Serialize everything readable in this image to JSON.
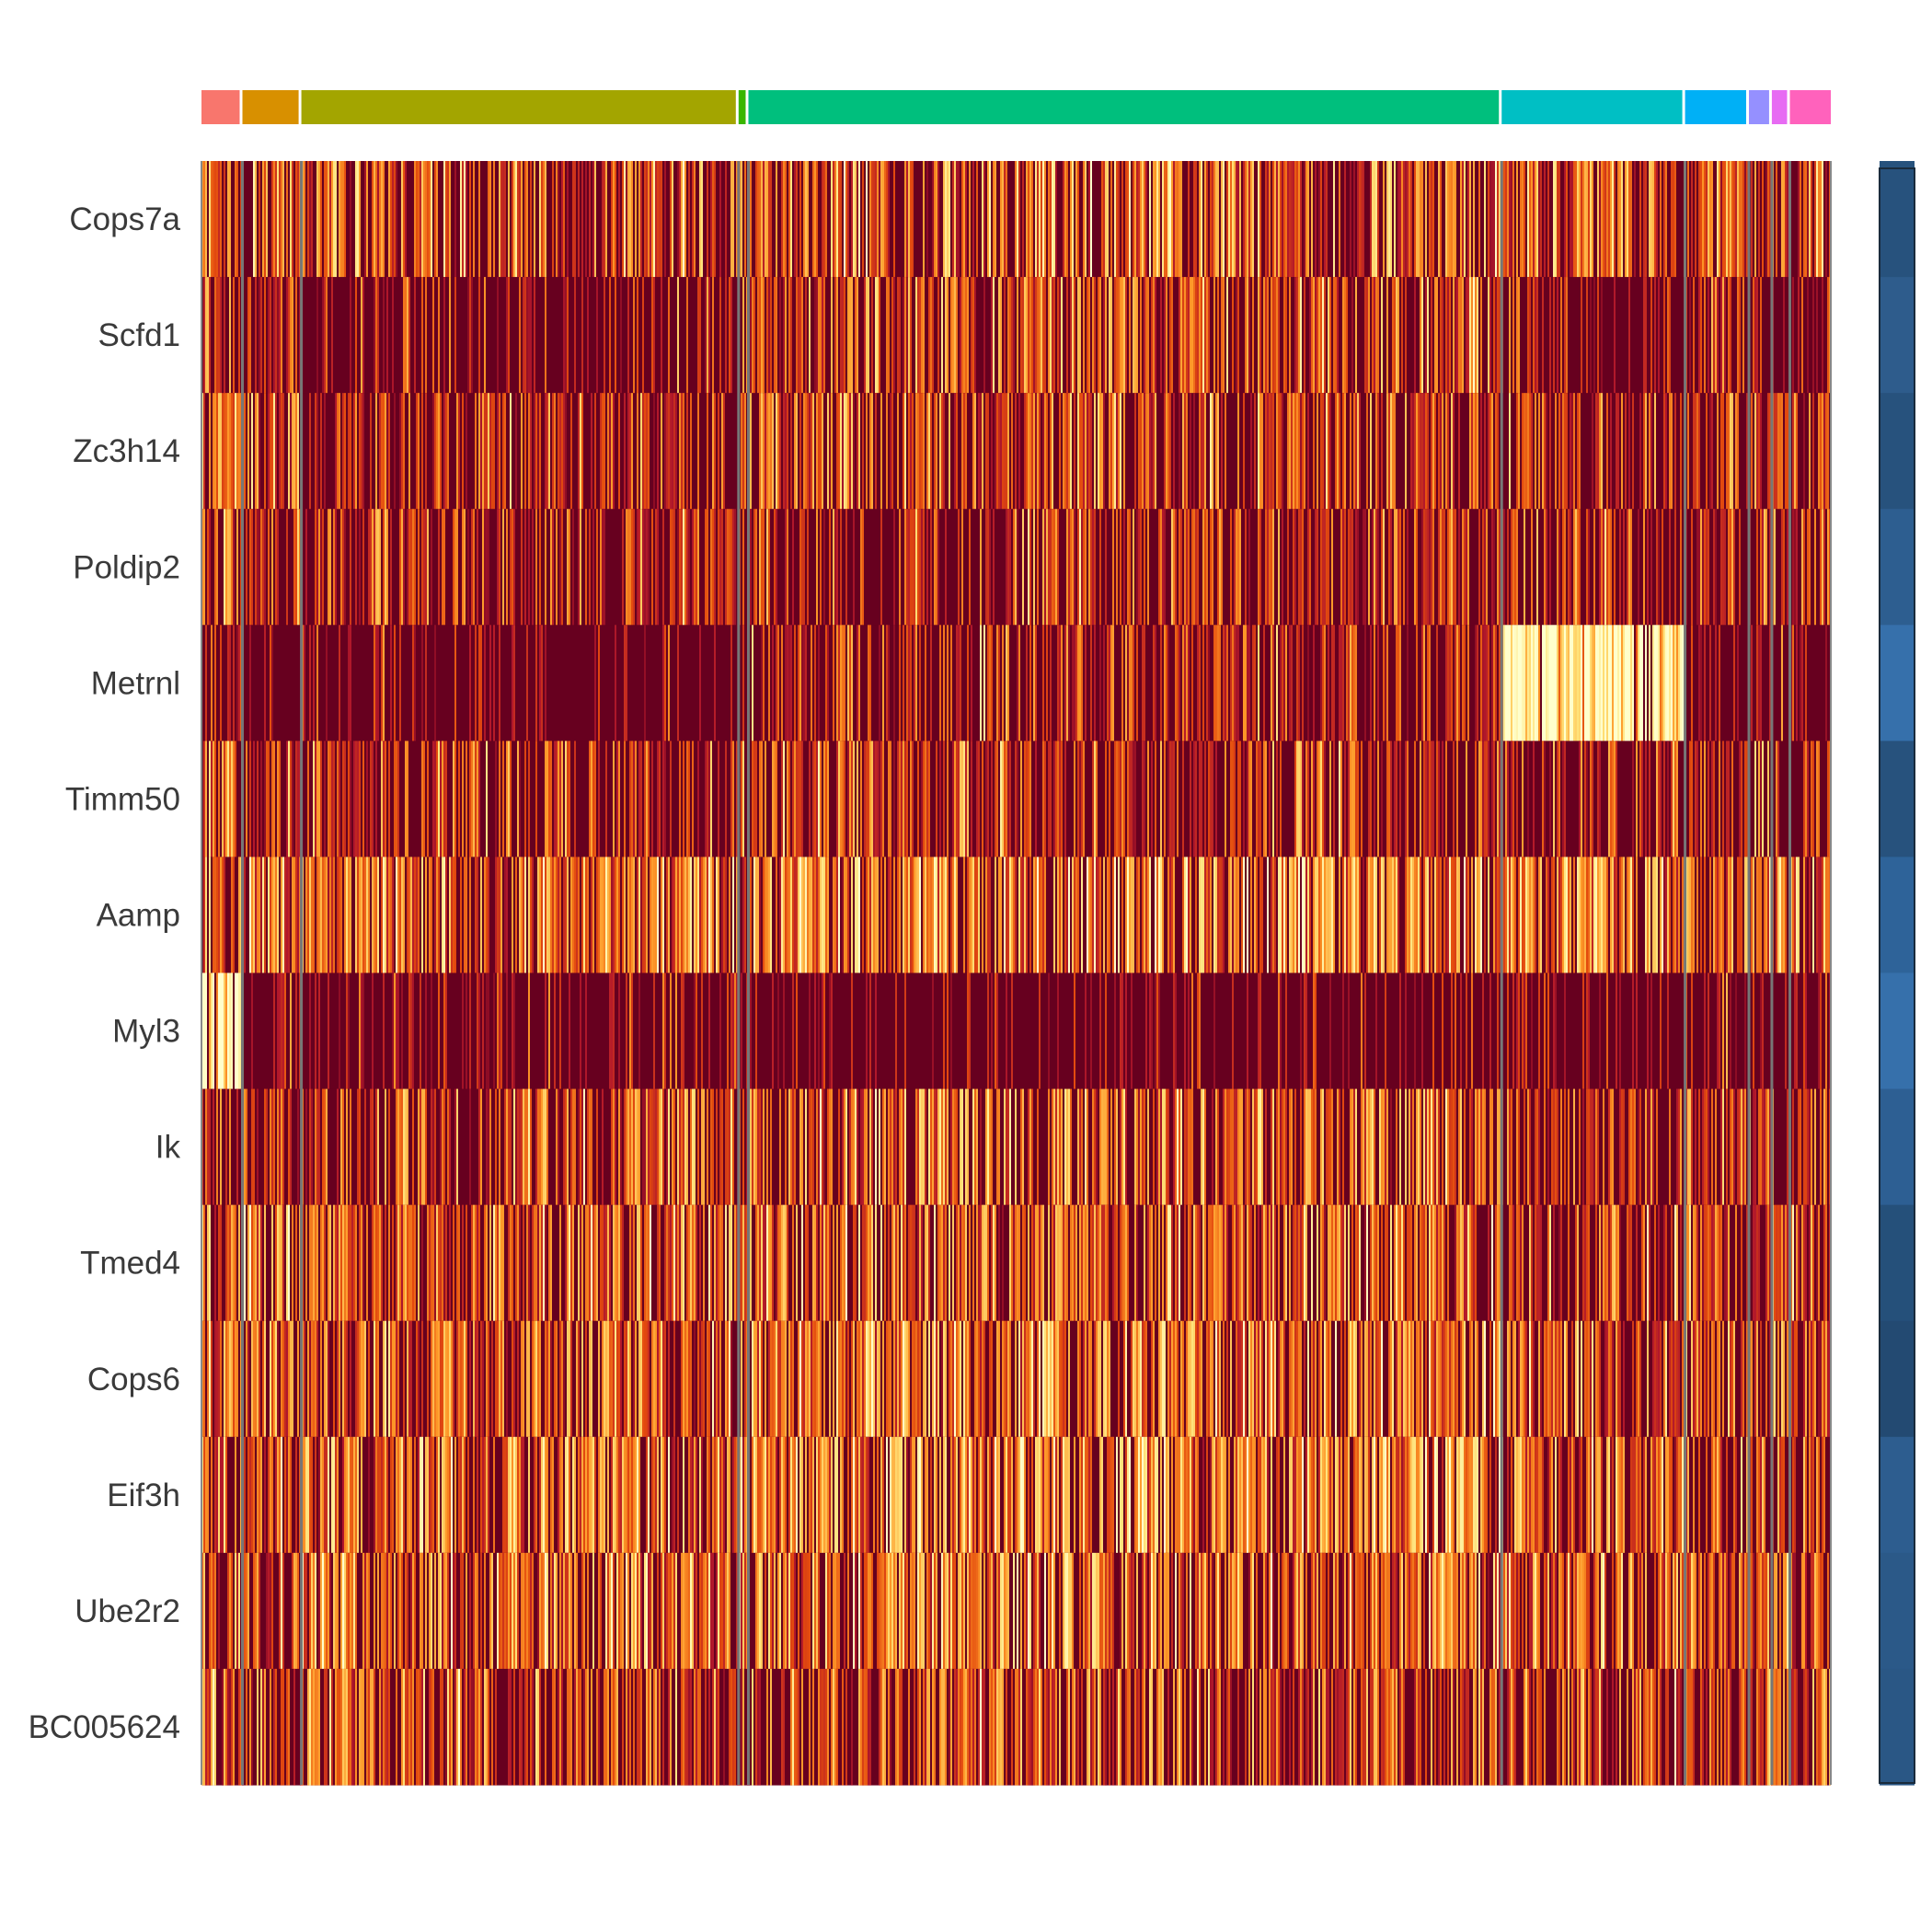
{
  "chart_data": {
    "type": "heatmap",
    "genes": [
      "Cops7a",
      "Scfd1",
      "Zc3h14",
      "Poldip2",
      "Metrnl",
      "Timm50",
      "Aamp",
      "Myl3",
      "Ik",
      "Tmed4",
      "Cops6",
      "Eif3h",
      "Ube2r2",
      "BC005624"
    ],
    "clusters": [
      {
        "color": "#F8766D",
        "fraction": 0.025
      },
      {
        "color": "#D89000",
        "fraction": 0.036
      },
      {
        "color": "#A3A500",
        "fraction": 0.267
      },
      {
        "color": "#39B600",
        "fraction": 0.006
      },
      {
        "color": "#00BF7D",
        "fraction": 0.46
      },
      {
        "color": "#00BFC4",
        "fraction": 0.112
      },
      {
        "color": "#00B0F6",
        "fraction": 0.039
      },
      {
        "color": "#9590FF",
        "fraction": 0.014
      },
      {
        "color": "#E76BF3",
        "fraction": 0.011
      },
      {
        "color": "#FF62BC",
        "fraction": 0.025
      }
    ],
    "expression_profile": [
      [
        0.45,
        0.45,
        0.45,
        0.45,
        0.45,
        0.45,
        0.45,
        0.45,
        0.45,
        0.45
      ],
      [
        0.3,
        0.3,
        0.15,
        0.3,
        0.42,
        0.15,
        0.22,
        0.22,
        0.22,
        0.22
      ],
      [
        0.5,
        0.32,
        0.3,
        0.3,
        0.38,
        0.3,
        0.3,
        0.3,
        0.3,
        0.3
      ],
      [
        0.5,
        0.3,
        0.3,
        0.3,
        0.3,
        0.3,
        0.28,
        0.28,
        0.28,
        0.35
      ],
      [
        0.3,
        0.05,
        0.05,
        0.05,
        0.3,
        0.92,
        0.1,
        0.1,
        0.1,
        0.1
      ],
      [
        0.55,
        0.3,
        0.3,
        0.3,
        0.32,
        0.2,
        0.3,
        0.3,
        0.3,
        0.3
      ],
      [
        0.45,
        0.55,
        0.5,
        0.5,
        0.58,
        0.55,
        0.5,
        0.5,
        0.5,
        0.5
      ],
      [
        0.95,
        0.1,
        0.1,
        0.1,
        0.04,
        0.04,
        0.1,
        0.1,
        0.1,
        0.1
      ],
      [
        0.3,
        0.35,
        0.35,
        0.35,
        0.45,
        0.3,
        0.35,
        0.35,
        0.35,
        0.35
      ],
      [
        0.5,
        0.62,
        0.45,
        0.45,
        0.48,
        0.35,
        0.4,
        0.4,
        0.4,
        0.4
      ],
      [
        0.6,
        0.45,
        0.45,
        0.45,
        0.55,
        0.45,
        0.4,
        0.4,
        0.4,
        0.4
      ],
      [
        0.35,
        0.45,
        0.5,
        0.5,
        0.6,
        0.5,
        0.4,
        0.4,
        0.4,
        0.35
      ],
      [
        0.45,
        0.45,
        0.5,
        0.5,
        0.5,
        0.45,
        0.45,
        0.45,
        0.45,
        0.4
      ],
      [
        0.4,
        0.35,
        0.4,
        0.4,
        0.4,
        0.4,
        0.38,
        0.38,
        0.38,
        0.38
      ]
    ],
    "row_side_colors": [
      "#27527d",
      "#2e5c8c",
      "#27527d",
      "#2d5e90",
      "#3670ab",
      "#27527d",
      "#2e6399",
      "#3670ab",
      "#2d5f93",
      "#25507a",
      "#234a72",
      "#2d5d8f",
      "#2b5988",
      "#2a5785"
    ],
    "color_scale": [
      "#67001F",
      "#B2182B",
      "#E34A0E",
      "#FE9929",
      "#FFE27A",
      "#FFFFCC"
    ],
    "cells_per_cluster_column": 4
  }
}
